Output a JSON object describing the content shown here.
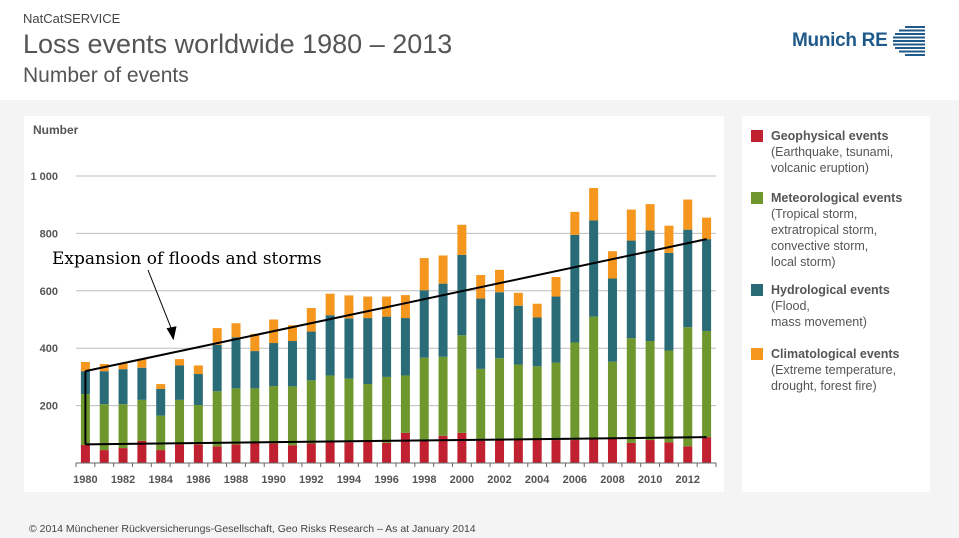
{
  "header": {
    "kicker": "NatCatSERVICE",
    "title": "Loss events worldwide 1980 – 2013",
    "subtitle": "Number of events",
    "logo_text": "Munich RE"
  },
  "footer": "© 2014 Münchener Rückversicherungs-Gesellschaft, Geo Risks Research – As at January 2014",
  "legend": [
    {
      "title": "Geophysical events",
      "desc": [
        "(Earthquake, tsunami,",
        "volcanic eruption)"
      ],
      "color": "#c0202f"
    },
    {
      "title": "Meteorological events",
      "desc": [
        "(Tropical storm,",
        "extratropical storm,",
        "convective storm,",
        "local storm)"
      ],
      "color": "#6e982e"
    },
    {
      "title": "Hydrological events",
      "desc": [
        "(Flood,",
        "mass movement)"
      ],
      "color": "#2a6b78"
    },
    {
      "title": "Climatological events",
      "desc": [
        "(Extreme temperature,",
        "drought, forest fire)"
      ],
      "color": "#f5961e"
    }
  ],
  "chart_data": {
    "type": "bar",
    "stacked": true,
    "title": "Loss events worldwide 1980 – 2013",
    "ylabel": "Number",
    "xlabel": "",
    "ylim": [
      0,
      1000
    ],
    "yticks": [
      200,
      400,
      600,
      800,
      1000
    ],
    "ytick_labels": [
      "200",
      "400",
      "600",
      "800",
      "1 000"
    ],
    "grid": true,
    "legend_position": "right",
    "categories": [
      "1980",
      "1981",
      "1982",
      "1983",
      "1984",
      "1985",
      "1986",
      "1987",
      "1988",
      "1989",
      "1990",
      "1991",
      "1992",
      "1993",
      "1994",
      "1995",
      "1996",
      "1997",
      "1998",
      "1999",
      "2000",
      "2001",
      "2002",
      "2003",
      "2004",
      "2005",
      "2006",
      "2007",
      "2008",
      "2009",
      "2010",
      "2011",
      "2012",
      "2013"
    ],
    "xtick_labels": [
      "1980",
      "1982",
      "1984",
      "1986",
      "1988",
      "1990",
      "1992",
      "1994",
      "1996",
      "1998",
      "2000",
      "2002",
      "2004",
      "2006",
      "2008",
      "2010",
      "2012"
    ],
    "series": [
      {
        "name": "Geophysical events",
        "color": "#c0202f",
        "values": [
          63,
          45,
          52,
          77,
          45,
          65,
          65,
          58,
          65,
          70,
          68,
          62,
          68,
          75,
          72,
          80,
          70,
          105,
          82,
          95,
          105,
          78,
          80,
          80,
          80,
          80,
          80,
          85,
          85,
          70,
          80,
          72,
          58,
          90
        ]
      },
      {
        "name": "Meteorological events",
        "color": "#6e982e",
        "values": [
          177,
          160,
          153,
          143,
          120,
          155,
          137,
          192,
          195,
          190,
          200,
          205,
          220,
          230,
          222,
          195,
          230,
          200,
          285,
          275,
          340,
          250,
          285,
          263,
          257,
          270,
          340,
          425,
          268,
          365,
          345,
          320,
          415,
          370
        ]
      },
      {
        "name": "Hydrological events",
        "color": "#2a6b78",
        "values": [
          80,
          115,
          122,
          112,
          93,
          120,
          108,
          162,
          178,
          130,
          150,
          158,
          170,
          210,
          210,
          230,
          210,
          200,
          235,
          255,
          280,
          245,
          230,
          205,
          170,
          230,
          375,
          335,
          290,
          340,
          385,
          340,
          340,
          320
        ]
      },
      {
        "name": "Climatological events",
        "color": "#f5961e",
        "values": [
          32,
          25,
          21,
          30,
          17,
          22,
          30,
          58,
          49,
          60,
          82,
          55,
          82,
          75,
          80,
          75,
          70,
          80,
          112,
          98,
          105,
          82,
          78,
          45,
          48,
          68,
          80,
          113,
          95,
          108,
          92,
          95,
          105,
          75
        ]
      }
    ],
    "annotations": [
      {
        "text": "Expansion of floods and storms",
        "type": "arrow-label",
        "points_to_year": "1985",
        "points_to_value": 400
      },
      {
        "type": "trend-line",
        "label": "upper",
        "from": {
          "year": "1980",
          "value": 320
        },
        "to": {
          "year": "2013",
          "value": 780
        }
      },
      {
        "type": "trend-line",
        "label": "lower",
        "from": {
          "year": "1980",
          "value": 65
        },
        "to": {
          "year": "2013",
          "value": 90
        }
      }
    ]
  }
}
